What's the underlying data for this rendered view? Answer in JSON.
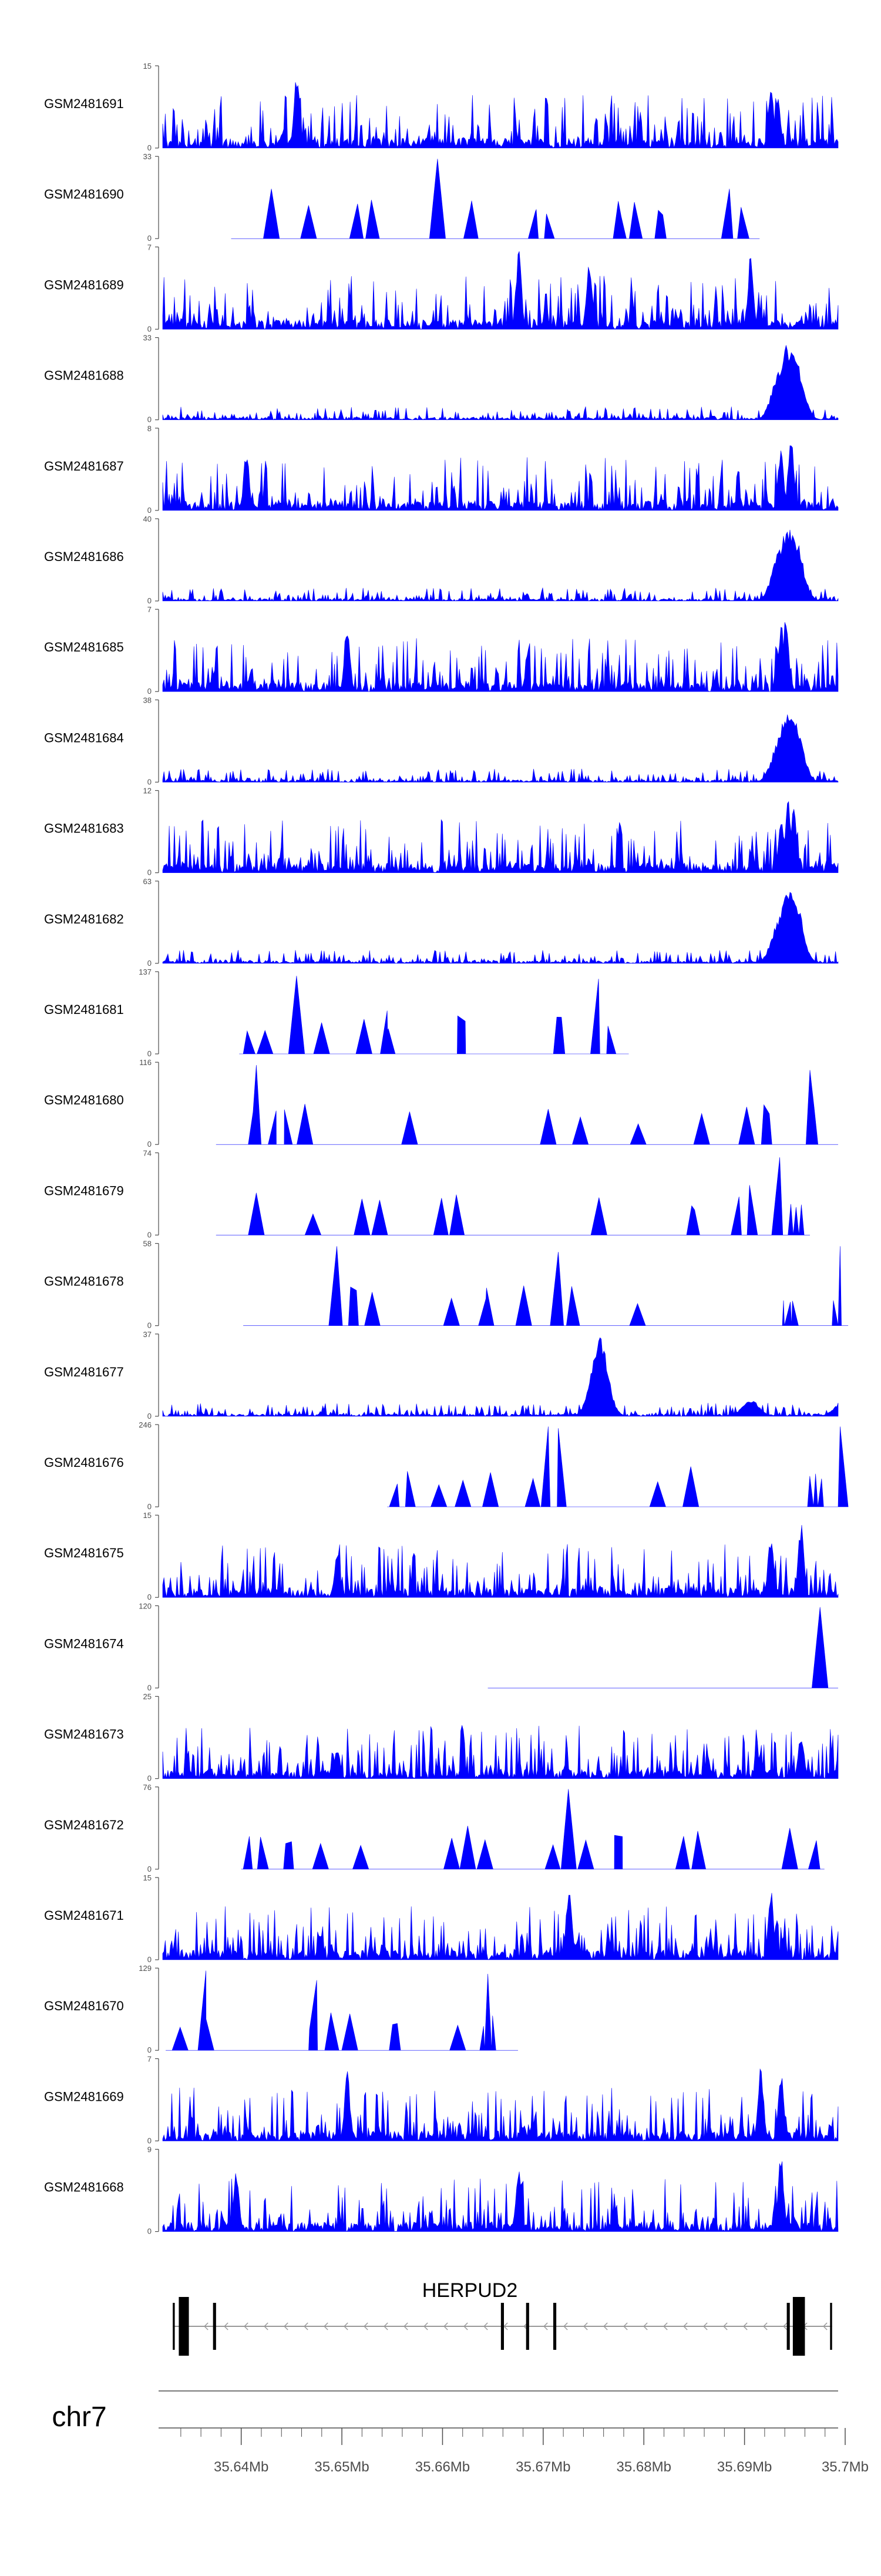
{
  "tracks_chart": {
    "type": "area",
    "chart_data": [
      {
        "track": "GSM2481691",
        "ylim": [
          0,
          15
        ],
        "peaks": [
          [
            35.6455,
            14
          ],
          [
            35.6925,
            12
          ],
          [
            35.6932,
            9
          ]
        ],
        "style": "dense"
      },
      {
        "track": "GSM2481690",
        "ylim": [
          0,
          33
        ],
        "peaks": [
          [
            35.6595,
            32
          ],
          [
            35.643,
            20
          ],
          [
            35.6885,
            20
          ]
        ],
        "style": "triangles"
      },
      {
        "track": "GSM2481689",
        "ylim": [
          0,
          7
        ],
        "peaks": [
          [
            35.6675,
            7
          ],
          [
            35.6745,
            6.5
          ],
          [
            35.6905,
            6.5
          ]
        ],
        "style": "dense"
      },
      {
        "track": "GSM2481688",
        "ylim": [
          0,
          33
        ],
        "peaks": [
          [
            35.6942,
            31
          ],
          [
            35.6948,
            28
          ],
          [
            35.6935,
            22
          ]
        ],
        "style": "dense"
      },
      {
        "track": "GSM2481687",
        "ylim": [
          0,
          8
        ],
        "peaks": [
          [
            35.6945,
            8
          ],
          [
            35.6935,
            6.5
          ],
          [
            35.6405,
            6
          ]
        ],
        "style": "dense"
      },
      {
        "track": "GSM2481686",
        "ylim": [
          0,
          40
        ],
        "peaks": [
          [
            35.6942,
            38
          ],
          [
            35.6948,
            33
          ],
          [
            35.6935,
            26
          ]
        ],
        "style": "dense"
      },
      {
        "track": "GSM2481685",
        "ylim": [
          0,
          7
        ],
        "peaks": [
          [
            35.694,
            6.5
          ],
          [
            35.6935,
            6
          ],
          [
            35.6505,
            6
          ]
        ],
        "style": "dense"
      },
      {
        "track": "GSM2481684",
        "ylim": [
          0,
          38
        ],
        "peaks": [
          [
            35.6942,
            36
          ],
          [
            35.6948,
            30
          ],
          [
            35.6935,
            22
          ]
        ],
        "style": "dense"
      },
      {
        "track": "GSM2481683",
        "ylim": [
          0,
          12
        ],
        "peaks": [
          [
            35.6942,
            11.5
          ],
          [
            35.6948,
            10
          ],
          [
            35.6935,
            8
          ]
        ],
        "style": "dense"
      },
      {
        "track": "GSM2481682",
        "ylim": [
          0,
          63
        ],
        "peaks": [
          [
            35.6942,
            60
          ],
          [
            35.6948,
            52
          ],
          [
            35.6935,
            40
          ]
        ],
        "style": "dense"
      },
      {
        "track": "GSM2481681",
        "ylim": [
          0,
          137
        ],
        "peaks": [
          [
            35.6455,
            130
          ],
          [
            35.6755,
            125
          ],
          [
            35.6545,
            72
          ]
        ],
        "style": "triangles"
      },
      {
        "track": "GSM2481680",
        "ylim": [
          0,
          116
        ],
        "peaks": [
          [
            35.6415,
            112
          ],
          [
            35.6965,
            105
          ],
          [
            35.6705,
            50
          ]
        ],
        "style": "triangles"
      },
      {
        "track": "GSM2481679",
        "ylim": [
          0,
          74
        ],
        "peaks": [
          [
            35.6935,
            70
          ],
          [
            35.6905,
            45
          ],
          [
            35.6415,
            38
          ]
        ],
        "style": "triangles"
      },
      {
        "track": "GSM2481678",
        "ylim": [
          0,
          58
        ],
        "peaks": [
          [
            35.6495,
            56
          ],
          [
            35.6995,
            56
          ],
          [
            35.6715,
            52
          ]
        ],
        "style": "triangles"
      },
      {
        "track": "GSM2481677",
        "ylim": [
          0,
          37
        ],
        "peaks": [
          [
            35.6755,
            36
          ],
          [
            35.6905,
            8
          ],
          [
            35.6995,
            6
          ]
        ],
        "style": "dense"
      },
      {
        "track": "GSM2481676",
        "ylim": [
          0,
          246
        ],
        "peaks": [
          [
            35.6705,
            240
          ],
          [
            35.6995,
            240
          ],
          [
            35.6715,
            235
          ]
        ],
        "style": "triangles"
      },
      {
        "track": "GSM2481675",
        "ylim": [
          0,
          15
        ],
        "peaks": [
          [
            35.6955,
            14
          ],
          [
            35.6925,
            12
          ],
          [
            35.6495,
            9
          ]
        ],
        "style": "dense"
      },
      {
        "track": "GSM2481674",
        "ylim": [
          0,
          120
        ],
        "peaks": [
          [
            35.6975,
            118
          ]
        ],
        "style": "triangles"
      },
      {
        "track": "GSM2481673",
        "ylim": [
          0,
          25
        ],
        "peaks": [
          [
            35.6995,
            24
          ],
          [
            35.6955,
            15
          ],
          [
            35.6495,
            10
          ]
        ],
        "style": "dense"
      },
      {
        "track": "GSM2481672",
        "ylim": [
          0,
          76
        ],
        "peaks": [
          [
            35.6725,
            74
          ],
          [
            35.6625,
            40
          ],
          [
            35.6945,
            38
          ]
        ],
        "style": "triangles"
      },
      {
        "track": "GSM2481671",
        "ylim": [
          0,
          15
        ],
        "peaks": [
          [
            35.6725,
            14.5
          ],
          [
            35.6995,
            14
          ],
          [
            35.6925,
            13
          ]
        ],
        "style": "dense"
      },
      {
        "track": "GSM2481670",
        "ylim": [
          0,
          129
        ],
        "peaks": [
          [
            35.6365,
            125
          ],
          [
            35.6645,
            120
          ],
          [
            35.6475,
            110
          ]
        ],
        "style": "triangles"
      },
      {
        "track": "GSM2481669",
        "ylim": [
          0,
          7
        ],
        "peaks": [
          [
            35.6915,
            6.5
          ],
          [
            35.6935,
            6
          ],
          [
            35.6505,
            6
          ]
        ],
        "style": "dense"
      },
      {
        "track": "GSM2481668",
        "ylim": [
          0,
          9
        ],
        "peaks": [
          [
            35.6935,
            8.8
          ],
          [
            35.6395,
            7
          ],
          [
            35.6675,
            7
          ]
        ],
        "style": "dense"
      }
    ]
  },
  "gene_track": {
    "gene_name": "HERPUD2",
    "strand": "-",
    "exons": [
      [
        35.6332,
        35.6334
      ],
      [
        35.6338,
        35.6348
      ],
      [
        35.6372,
        35.6375
      ],
      [
        35.6658,
        35.6661
      ],
      [
        35.6683,
        35.6686
      ],
      [
        35.671,
        35.6713
      ],
      [
        35.6942,
        35.6945
      ],
      [
        35.6948,
        35.696
      ],
      [
        35.6985,
        35.6987
      ]
    ]
  },
  "axis": {
    "chromosome": "chr7",
    "xlim": [
      35.6322,
      35.6993
    ],
    "tick_labels": [
      "35.64Mb",
      "35.65Mb",
      "35.66Mb",
      "35.67Mb",
      "35.68Mb",
      "35.69Mb",
      "35.7Mb"
    ],
    "tick_values": [
      35.64,
      35.65,
      35.66,
      35.67,
      35.68,
      35.69,
      35.7
    ]
  },
  "colors": {
    "signal": "#0000ff",
    "axis": "#4d4d4d",
    "gene": "#000000",
    "intron": "#999999"
  }
}
